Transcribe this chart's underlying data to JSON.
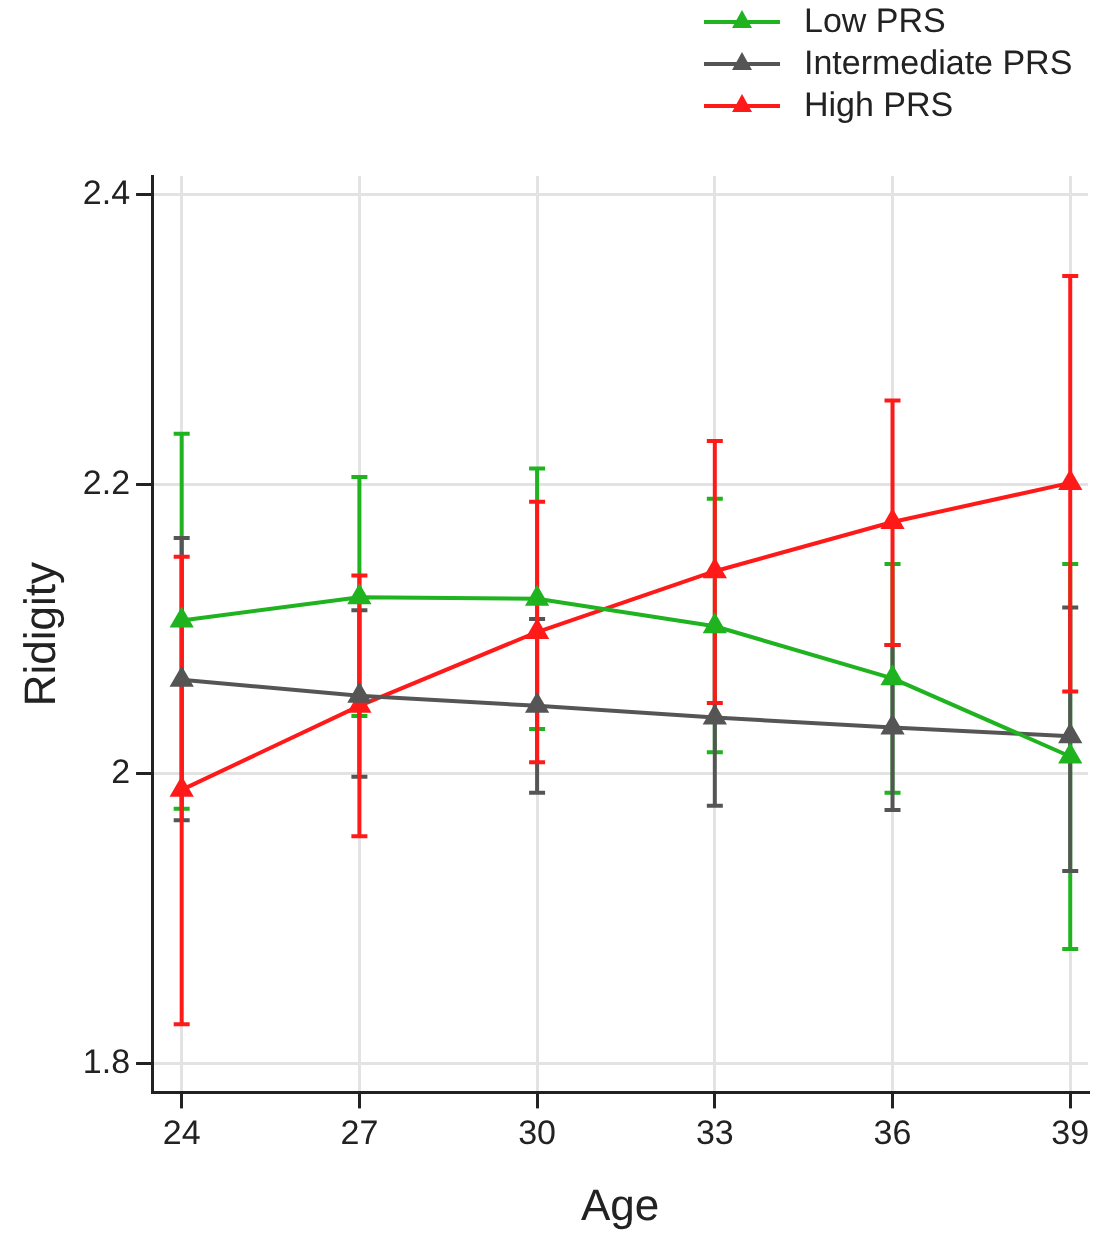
{
  "chart_data": {
    "type": "line",
    "xlabel": "Age",
    "ylabel": "Ridigity",
    "x": [
      24,
      27,
      30,
      33,
      36,
      39
    ],
    "xlim": [
      23.5,
      39.3
    ],
    "xticks": [
      24,
      27,
      30,
      33,
      36,
      39
    ],
    "ylim": [
      1.78,
      2.413
    ],
    "yticks": [
      1.8,
      2.0,
      2.2,
      2.4
    ],
    "grid": true,
    "legend": "top right",
    "marker": "triangle",
    "line_style": "solid",
    "series": [
      {
        "name": "Low PRS",
        "color": "#1fb31f",
        "values": [
          2.106,
          2.122,
          2.121,
          2.102,
          2.066,
          2.012
        ],
        "errors": [
          [
            1.976,
            2.235
          ],
          [
            2.04,
            2.205
          ],
          [
            2.031,
            2.211
          ],
          [
            2.015,
            2.19
          ],
          [
            1.987,
            2.145
          ],
          [
            1.879,
            2.145
          ]
        ]
      },
      {
        "name": "Intermediate PRS",
        "color": "#555555",
        "values": [
          2.065,
          2.054,
          2.047,
          2.039,
          2.032,
          2.026
        ],
        "errors": [
          [
            1.968,
            2.163
          ],
          [
            1.998,
            2.113
          ],
          [
            1.987,
            2.107
          ],
          [
            1.978,
            2.1
          ],
          [
            1.975,
            2.089
          ],
          [
            1.933,
            2.115
          ]
        ]
      },
      {
        "name": "High PRS",
        "color": "#ff1a1a",
        "values": [
          1.989,
          2.047,
          2.098,
          2.14,
          2.174,
          2.201
        ],
        "errors": [
          [
            1.827,
            2.15
          ],
          [
            1.957,
            2.137
          ],
          [
            2.008,
            2.188
          ],
          [
            2.049,
            2.23
          ],
          [
            2.089,
            2.258
          ],
          [
            2.057,
            2.344
          ]
        ]
      }
    ]
  }
}
